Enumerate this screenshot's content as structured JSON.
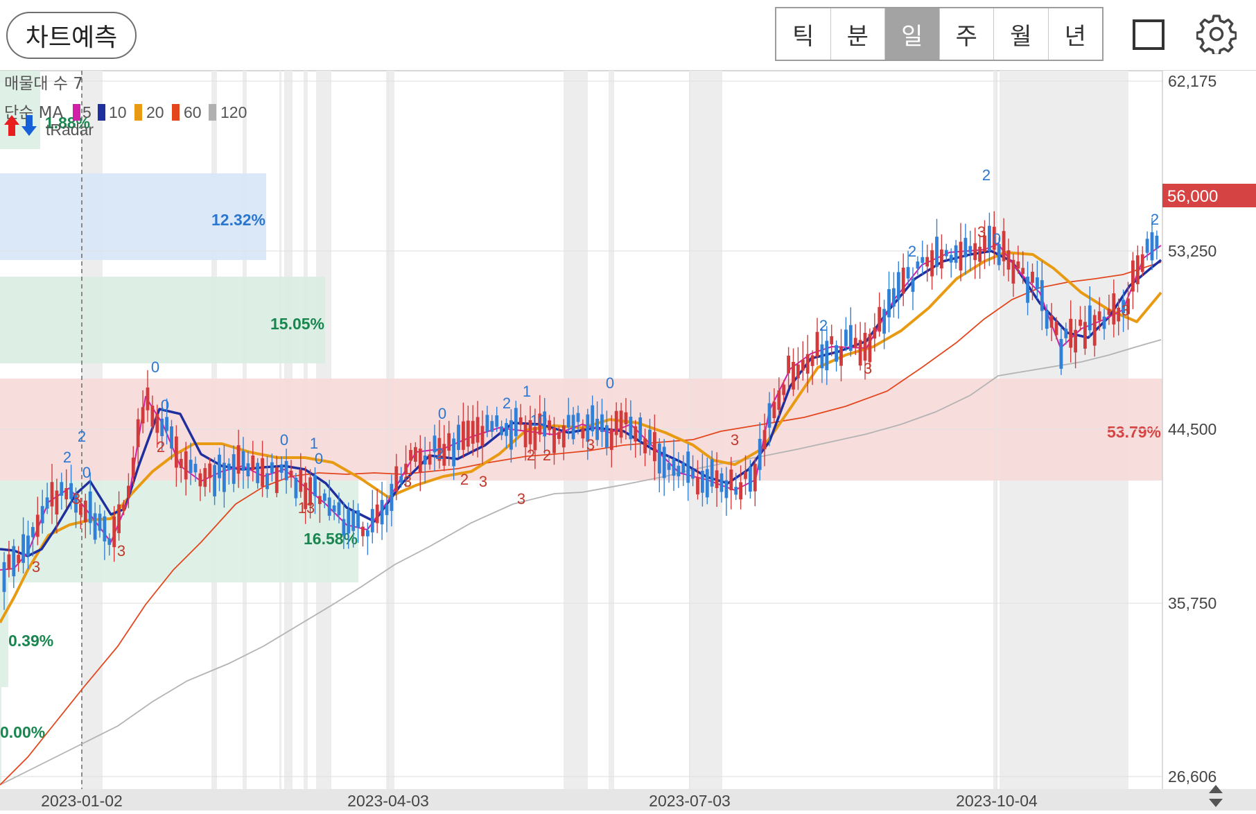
{
  "toolbar": {
    "predict_label": "차트예측",
    "periods": [
      {
        "label": "틱",
        "active": false
      },
      {
        "label": "분",
        "active": false
      },
      {
        "label": "일",
        "active": true
      },
      {
        "label": "주",
        "active": false
      },
      {
        "label": "월",
        "active": false
      },
      {
        "label": "년",
        "active": false
      }
    ],
    "square_icon": "square-outline-icon",
    "settings_icon": "gear-icon"
  },
  "indicators": {
    "volume_profile_label": "매물대 수 7",
    "ma_label": "단순 MA",
    "ma_periods": [
      {
        "period": "5",
        "color": "#d21fa8"
      },
      {
        "period": "10",
        "color": "#1f2f9e"
      },
      {
        "period": "20",
        "color": "#e89b12"
      },
      {
        "period": "60",
        "color": "#e3461c"
      },
      {
        "period": "120",
        "color": "#b0b0b0"
      }
    ],
    "tradar_label": "tRadar",
    "up_arrow_color": "#e81e1e",
    "down_arrow_color": "#1660d8"
  },
  "volume_profile": [
    {
      "label": "1.88%",
      "color": "#18864e"
    },
    {
      "label": "12.32%",
      "color": "#2b77d0"
    },
    {
      "label": "15.05%",
      "color": "#18864e"
    },
    {
      "label": "53.79%",
      "color": "#d64343"
    },
    {
      "label": "16.58%",
      "color": "#18864e"
    },
    {
      "label": "0.39%",
      "color": "#18864e"
    },
    {
      "label": "0.00%",
      "color": "#18864e"
    }
  ],
  "chart_data": {
    "type": "candlestick",
    "y_ticks": [
      "62,175",
      "53,250",
      "44,500",
      "35,750",
      "26,606"
    ],
    "current_price_label": "56,000",
    "x_ticks": [
      "2023-01-02",
      "2023-04-03",
      "2023-07-03",
      "2023-10-04"
    ],
    "ylim": [
      26606,
      62175
    ],
    "markers": [
      {
        "text": "2",
        "color": "#2b77d0"
      },
      {
        "text": "2",
        "color": "#2b77d0"
      },
      {
        "text": "0",
        "color": "#2b77d0"
      },
      {
        "text": "3",
        "color": "#c0392b"
      },
      {
        "text": "3",
        "color": "#c0392b"
      },
      {
        "text": "3",
        "color": "#c0392b"
      },
      {
        "text": "0",
        "color": "#2b77d0"
      },
      {
        "text": "0",
        "color": "#2b77d0"
      },
      {
        "text": "2",
        "color": "#c0392b"
      },
      {
        "text": "0",
        "color": "#2b77d0"
      },
      {
        "text": "1",
        "color": "#2b77d0"
      },
      {
        "text": "0",
        "color": "#2b77d0"
      },
      {
        "text": "13",
        "color": "#c0392b"
      },
      {
        "text": "3",
        "color": "#c0392b"
      },
      {
        "text": "2",
        "color": "#2b77d0"
      },
      {
        "text": "0",
        "color": "#2b77d0"
      },
      {
        "text": "2",
        "color": "#c0392b"
      },
      {
        "text": "3",
        "color": "#c0392b"
      },
      {
        "text": "2",
        "color": "#2b77d0"
      },
      {
        "text": "3",
        "color": "#c0392b"
      },
      {
        "text": "1",
        "color": "#2b77d0"
      },
      {
        "text": "10",
        "color": "#2b77d0"
      },
      {
        "text": "2",
        "color": "#c0392b"
      },
      {
        "text": "2",
        "color": "#c0392b"
      },
      {
        "text": "0",
        "color": "#2b77d0"
      },
      {
        "text": "3",
        "color": "#c0392b"
      },
      {
        "text": "3",
        "color": "#c0392b"
      },
      {
        "text": "2",
        "color": "#2b77d0"
      },
      {
        "text": "3",
        "color": "#c0392b"
      },
      {
        "text": "2",
        "color": "#2b77d0"
      },
      {
        "text": "2",
        "color": "#2b77d0"
      },
      {
        "text": "3",
        "color": "#c0392b"
      },
      {
        "text": "0",
        "color": "#2b77d0"
      },
      {
        "text": "2",
        "color": "#2b77d0"
      },
      {
        "text": "3",
        "color": "#c0392b"
      }
    ]
  }
}
